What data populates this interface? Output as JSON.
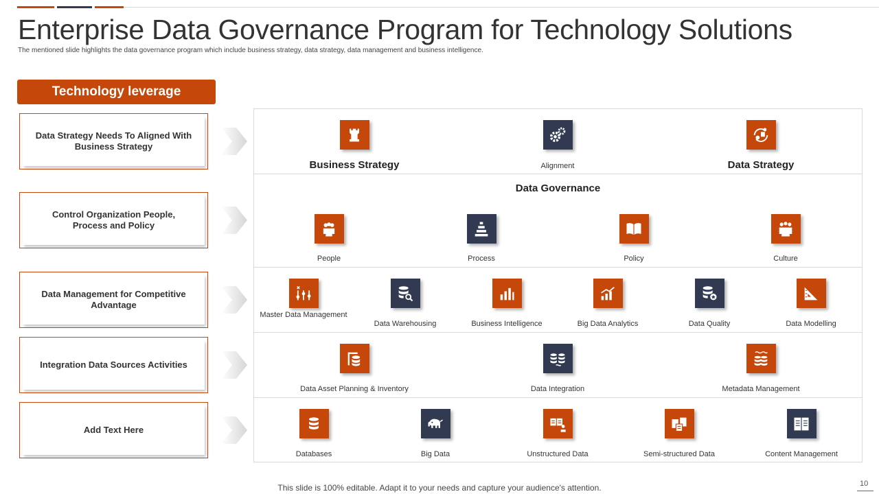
{
  "header": {
    "title": "Enterprise Data Governance Program for Technology Solutions",
    "subtitle": "The mentioned slide highlights the data governance program which include business strategy, data strategy, data management and business intelligence."
  },
  "left_panel": {
    "header": "Technology leverage",
    "boxes": [
      "Data Strategy Needs To Aligned With Business Strategy",
      "Control Organization People, Process and Policy",
      "Data Management for Competitive Advantage",
      "Integration Data Sources Activities",
      "Add Text Here"
    ]
  },
  "rows": {
    "row1": {
      "left": "Business Strategy",
      "center": "Alignment",
      "right": "Data Strategy"
    },
    "row2": {
      "title": "Data Governance",
      "items": [
        "People",
        "Process",
        "Policy",
        "Culture"
      ]
    },
    "row3": {
      "items": [
        "Master Data Management",
        "Data Warehousing",
        "Business Intelligence",
        "Big Data Analytics",
        "Data Quality",
        "Data Modelling"
      ]
    },
    "row4": {
      "items": [
        "Data Asset Planning & Inventory",
        "Data Integration",
        "Metadata Management"
      ]
    },
    "row5": {
      "items": [
        "Databases",
        "Big Data",
        "Unstructured Data",
        "Semi-structured Data",
        "Content Management"
      ]
    }
  },
  "colors": {
    "accent": "#c5470a",
    "navy": "#323a52"
  },
  "footer": {
    "note": "This slide is 100% editable. Adapt it to your needs and capture your audience's attention.",
    "page_number": "10"
  }
}
